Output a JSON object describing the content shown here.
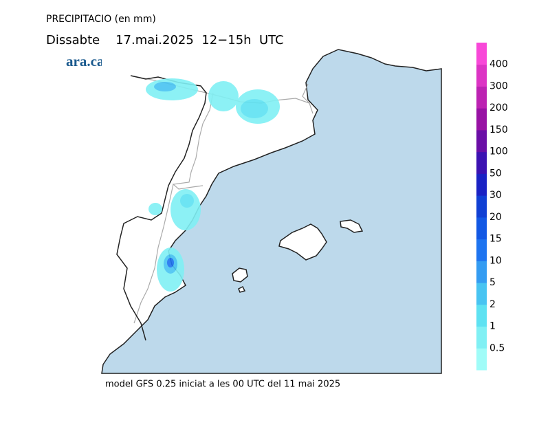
{
  "title": "PRECIPITACIO (en mm)",
  "subtitle": "Dissabte    17.mai.2025  12−15h  UTC",
  "logo": "ara.cat",
  "footer": "model GFS 0.25 iniciat a les 00 UTC del 11 mai 2025",
  "legend": {
    "levels": [
      0.5,
      1,
      2,
      5,
      10,
      15,
      20,
      30,
      50,
      100,
      150,
      200,
      300,
      400
    ],
    "colors": [
      "#a0fcf8",
      "#80f0f4",
      "#5ee2f2",
      "#48c4f2",
      "#349cf2",
      "#1e74f0",
      "#1258e4",
      "#1040d4",
      "#1a22c4",
      "#3c12b2",
      "#6a0ea6",
      "#9812a4",
      "#bc22b2",
      "#dc34c4",
      "#f848d8"
    ]
  }
}
